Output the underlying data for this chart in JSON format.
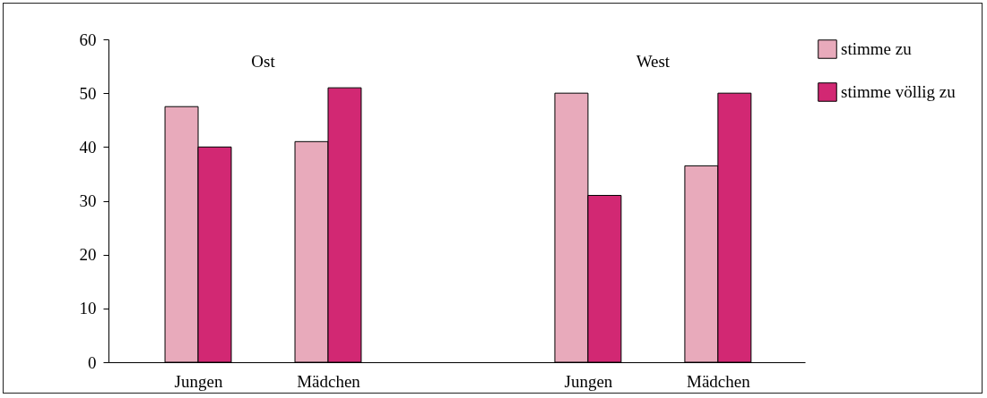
{
  "chart_data": {
    "type": "bar",
    "categories": [
      "Jungen",
      "Mädchen",
      null,
      "Jungen",
      "Mädchen"
    ],
    "series": [
      {
        "name": "stimme zu",
        "color": "#e8aabb",
        "values": [
          47.5,
          41,
          null,
          50,
          36.5
        ]
      },
      {
        "name": "stimme völlig zu",
        "color": "#d22873",
        "values": [
          40,
          51,
          null,
          31,
          50
        ]
      }
    ],
    "annotations": [
      "Ost",
      "West"
    ],
    "ylim": [
      0,
      60
    ],
    "yticks": [
      0,
      10,
      20,
      30,
      40,
      50,
      60
    ],
    "grid": false,
    "legend": "right"
  }
}
